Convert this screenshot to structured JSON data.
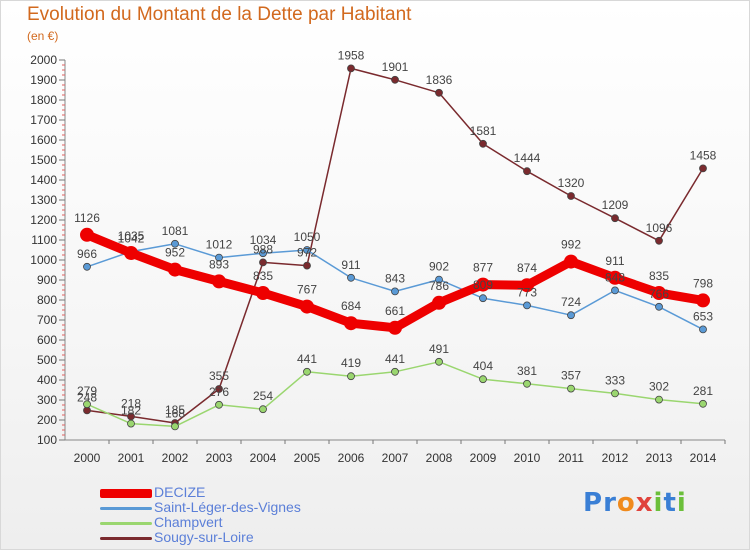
{
  "header": {
    "title": "Evolution du Montant de la Dette par Habitant",
    "unit": "(en €)"
  },
  "brand": {
    "letters": [
      "P",
      "r",
      "o",
      "x",
      "i",
      "t",
      "i"
    ],
    "colors": [
      "#3a7fd5",
      "#3a7fd5",
      "#f08a1c",
      "#e0433c",
      "#6bbf3a",
      "#3a7fd5",
      "#6bbf3a"
    ]
  },
  "chart_data": {
    "type": "line",
    "title": "Evolution du Montant de la Dette par Habitant",
    "subtitle": "(en €)",
    "xlabel": "",
    "ylabel": "",
    "x": [
      "2000",
      "2001",
      "2002",
      "2003",
      "2004",
      "2005",
      "2006",
      "2007",
      "2008",
      "2009",
      "2010",
      "2011",
      "2012",
      "2013",
      "2014"
    ],
    "ylim": [
      100,
      2000
    ],
    "yticks": [
      100,
      200,
      300,
      400,
      500,
      600,
      700,
      800,
      900,
      1000,
      1100,
      1200,
      1300,
      1400,
      1500,
      1600,
      1700,
      1800,
      1900,
      2000
    ],
    "grid": false,
    "legend_position": "bottom-left",
    "series": [
      {
        "name": "DECIZE",
        "color": "#ee0000",
        "width": 9,
        "marker": 7,
        "values": [
          1126,
          1035,
          952,
          893,
          835,
          767,
          684,
          661,
          786,
          877,
          874,
          992,
          911,
          835,
          798
        ]
      },
      {
        "name": "Saint-Léger-des-Vignes",
        "color": "#5a9ad6",
        "width": 1.5,
        "marker": 3.5,
        "values": [
          966,
          1042,
          1081,
          1012,
          1034,
          1050,
          911,
          843,
          902,
          809,
          773,
          724,
          848,
          766,
          653
        ]
      },
      {
        "name": "Champvert",
        "color": "#9ad66f",
        "width": 1.5,
        "marker": 3.5,
        "values": [
          279,
          182,
          168,
          276,
          254,
          441,
          419,
          441,
          491,
          404,
          381,
          357,
          333,
          302,
          281
        ]
      },
      {
        "name": "Sougy-sur-Loire",
        "color": "#7a2a2e",
        "width": 1.5,
        "marker": 3.5,
        "values": [
          248,
          218,
          185,
          355,
          988,
          972,
          1958,
          1901,
          1836,
          1581,
          1444,
          1320,
          1209,
          1096,
          1458
        ]
      }
    ],
    "data_labels": [
      {
        "series": 0,
        "labels": [
          "1126",
          "1035",
          "952",
          "893",
          "835",
          "767",
          "684",
          "661",
          "786",
          "877",
          "874",
          "992",
          "911",
          "835",
          "798"
        ]
      },
      {
        "series": 1,
        "labels": [
          "966",
          "1042",
          "1081",
          "1012",
          "1034",
          "1050",
          "911",
          "843",
          "902",
          "809",
          "773",
          "724",
          "848",
          "766",
          "653"
        ]
      },
      {
        "series": 2,
        "labels": [
          "279",
          "182",
          "168",
          "276",
          "254",
          "441",
          "419",
          "441",
          "491",
          "404",
          "381",
          "357",
          "333",
          "302",
          "281"
        ]
      },
      {
        "series": 3,
        "labels": [
          "248",
          "218",
          "185",
          "355",
          "988",
          "972",
          "1958",
          "1901",
          "1836",
          "1581",
          "1444",
          "1320",
          "1209",
          "1096",
          "1458"
        ]
      }
    ]
  }
}
